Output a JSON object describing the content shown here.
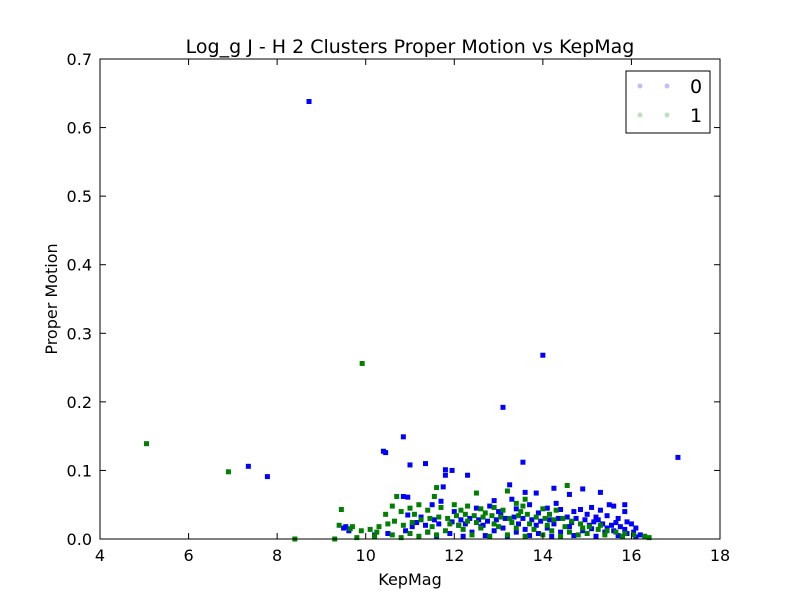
{
  "chart_data": {
    "type": "scatter",
    "title": "Log_g J - H 2 Clusters Proper Motion vs KepMag",
    "xlabel": "KepMag",
    "ylabel": "Proper Motion",
    "xlim": [
      4,
      18
    ],
    "ylim": [
      0,
      0.7
    ],
    "xticks": [
      4,
      6,
      8,
      10,
      12,
      14,
      16,
      18
    ],
    "yticks": [
      0.0,
      0.1,
      0.2,
      0.3,
      0.4,
      0.5,
      0.6,
      0.7
    ],
    "grid": false,
    "legend_position": "top-right",
    "series": [
      {
        "name": "0",
        "color": "#0000ff",
        "points": [
          [
            8.72,
            0.638
          ],
          [
            14.0,
            0.268
          ],
          [
            13.1,
            0.192
          ],
          [
            17.05,
            0.119
          ],
          [
            10.85,
            0.149
          ],
          [
            7.35,
            0.106
          ],
          [
            7.78,
            0.091
          ],
          [
            13.55,
            0.112
          ],
          [
            10.4,
            0.128
          ],
          [
            11.8,
            0.101
          ],
          [
            11.95,
            0.1
          ],
          [
            12.3,
            0.093
          ],
          [
            11.8,
            0.093
          ],
          [
            10.85,
            0.062
          ],
          [
            10.95,
            0.061
          ],
          [
            11.75,
            0.076
          ],
          [
            13.25,
            0.079
          ],
          [
            13.6,
            0.068
          ],
          [
            13.85,
            0.067
          ],
          [
            15.3,
            0.068
          ],
          [
            14.25,
            0.074
          ],
          [
            14.9,
            0.073
          ],
          [
            14.6,
            0.065
          ],
          [
            12.9,
            0.056
          ],
          [
            13.3,
            0.058
          ],
          [
            14.3,
            0.052
          ],
          [
            15.1,
            0.046
          ],
          [
            15.5,
            0.05
          ],
          [
            15.6,
            0.048
          ],
          [
            15.85,
            0.05
          ],
          [
            15.3,
            0.042
          ],
          [
            15.85,
            0.04
          ],
          [
            11.7,
            0.055
          ],
          [
            11.5,
            0.05
          ],
          [
            9.55,
            0.018
          ],
          [
            9.62,
            0.012
          ],
          [
            12.0,
            0.04
          ],
          [
            12.5,
            0.045
          ],
          [
            12.8,
            0.048
          ],
          [
            13.0,
            0.04
          ],
          [
            13.4,
            0.044
          ],
          [
            13.7,
            0.05
          ],
          [
            13.9,
            0.038
          ],
          [
            14.1,
            0.045
          ],
          [
            14.4,
            0.043
          ],
          [
            14.7,
            0.04
          ],
          [
            15.0,
            0.036
          ],
          [
            15.2,
            0.032
          ],
          [
            15.45,
            0.034
          ],
          [
            15.7,
            0.03
          ],
          [
            15.9,
            0.025
          ],
          [
            16.0,
            0.022
          ],
          [
            15.75,
            0.018
          ],
          [
            15.55,
            0.02
          ],
          [
            15.35,
            0.022
          ],
          [
            15.15,
            0.025
          ],
          [
            14.95,
            0.028
          ],
          [
            14.75,
            0.03
          ],
          [
            14.55,
            0.032
          ],
          [
            14.35,
            0.03
          ],
          [
            14.15,
            0.028
          ],
          [
            13.95,
            0.026
          ],
          [
            13.75,
            0.028
          ],
          [
            13.55,
            0.03
          ],
          [
            13.35,
            0.032
          ],
          [
            13.15,
            0.03
          ],
          [
            12.95,
            0.028
          ],
          [
            12.75,
            0.026
          ],
          [
            12.55,
            0.028
          ],
          [
            12.35,
            0.03
          ],
          [
            12.15,
            0.028
          ],
          [
            11.95,
            0.025
          ],
          [
            11.65,
            0.022
          ],
          [
            11.35,
            0.02
          ],
          [
            11.05,
            0.018
          ],
          [
            10.95,
            0.035
          ],
          [
            11.25,
            0.032
          ],
          [
            12.1,
            0.02
          ],
          [
            12.6,
            0.018
          ],
          [
            13.1,
            0.016
          ],
          [
            13.6,
            0.014
          ],
          [
            14.1,
            0.016
          ],
          [
            14.6,
            0.018
          ],
          [
            15.1,
            0.015
          ],
          [
            15.6,
            0.012
          ],
          [
            16.05,
            0.01
          ],
          [
            16.2,
            0.006
          ],
          [
            15.9,
            0.008
          ],
          [
            15.4,
            0.01
          ],
          [
            14.9,
            0.012
          ],
          [
            14.4,
            0.01
          ],
          [
            13.9,
            0.008
          ],
          [
            13.4,
            0.01
          ],
          [
            12.9,
            0.012
          ],
          [
            12.4,
            0.01
          ],
          [
            11.9,
            0.008
          ],
          [
            11.4,
            0.01
          ],
          [
            10.9,
            0.012
          ],
          [
            10.5,
            0.008
          ],
          [
            10.2,
            0.006
          ],
          [
            12.2,
            0.004
          ],
          [
            12.7,
            0.005
          ],
          [
            13.2,
            0.004
          ],
          [
            13.7,
            0.005
          ],
          [
            14.2,
            0.004
          ],
          [
            14.7,
            0.005
          ],
          [
            15.2,
            0.004
          ],
          [
            15.7,
            0.005
          ],
          [
            16.1,
            0.003
          ],
          [
            11.6,
            0.004
          ],
          [
            13.05,
            0.036
          ],
          [
            13.45,
            0.022
          ],
          [
            13.85,
            0.02
          ],
          [
            14.25,
            0.022
          ],
          [
            14.65,
            0.024
          ],
          [
            15.05,
            0.02
          ],
          [
            15.45,
            0.016
          ],
          [
            15.85,
            0.014
          ],
          [
            12.25,
            0.022
          ],
          [
            12.65,
            0.02
          ],
          [
            11.55,
            0.028
          ],
          [
            11.15,
            0.024
          ],
          [
            15.25,
            0.028
          ],
          [
            15.65,
            0.024
          ],
          [
            16.1,
            0.016
          ],
          [
            14.85,
            0.043
          ],
          [
            11.0,
            0.108
          ],
          [
            11.35,
            0.11
          ],
          [
            10.45,
            0.126
          ],
          [
            9.5,
            0.016
          ]
        ]
      },
      {
        "name": "1",
        "color": "#007f00",
        "points": [
          [
            5.05,
            0.139
          ],
          [
            6.9,
            0.098
          ],
          [
            9.92,
            0.256
          ],
          [
            14.55,
            0.078
          ],
          [
            11.6,
            0.075
          ],
          [
            11.55,
            0.062
          ],
          [
            10.7,
            0.062
          ],
          [
            12.5,
            0.067
          ],
          [
            13.2,
            0.07
          ],
          [
            9.45,
            0.043
          ],
          [
            10.45,
            0.036
          ],
          [
            10.6,
            0.048
          ],
          [
            10.8,
            0.04
          ],
          [
            11.0,
            0.045
          ],
          [
            11.2,
            0.05
          ],
          [
            11.4,
            0.042
          ],
          [
            11.7,
            0.046
          ],
          [
            12.0,
            0.05
          ],
          [
            12.3,
            0.048
          ],
          [
            12.6,
            0.044
          ],
          [
            12.9,
            0.046
          ],
          [
            13.4,
            0.052
          ],
          [
            13.6,
            0.058
          ],
          [
            14.0,
            0.044
          ],
          [
            14.3,
            0.042
          ],
          [
            9.4,
            0.02
          ],
          [
            9.65,
            0.015
          ],
          [
            9.9,
            0.012
          ],
          [
            10.1,
            0.014
          ],
          [
            10.3,
            0.018
          ],
          [
            10.5,
            0.022
          ],
          [
            10.65,
            0.026
          ],
          [
            10.85,
            0.02
          ],
          [
            11.05,
            0.024
          ],
          [
            11.25,
            0.028
          ],
          [
            11.45,
            0.03
          ],
          [
            11.65,
            0.032
          ],
          [
            11.85,
            0.03
          ],
          [
            12.05,
            0.034
          ],
          [
            12.25,
            0.036
          ],
          [
            12.45,
            0.034
          ],
          [
            12.65,
            0.032
          ],
          [
            12.85,
            0.034
          ],
          [
            13.05,
            0.032
          ],
          [
            13.25,
            0.03
          ],
          [
            13.45,
            0.034
          ],
          [
            13.65,
            0.036
          ],
          [
            13.85,
            0.032
          ],
          [
            14.05,
            0.03
          ],
          [
            14.25,
            0.028
          ],
          [
            14.45,
            0.03
          ],
          [
            14.65,
            0.026
          ],
          [
            14.85,
            0.022
          ],
          [
            15.05,
            0.018
          ],
          [
            15.25,
            0.014
          ],
          [
            15.45,
            0.012
          ],
          [
            15.65,
            0.01
          ],
          [
            15.85,
            0.008
          ],
          [
            16.05,
            0.006
          ],
          [
            16.3,
            0.004
          ],
          [
            16.4,
            0.002
          ],
          [
            8.4,
            0.0
          ],
          [
            9.3,
            0.0
          ],
          [
            9.8,
            0.002
          ],
          [
            10.2,
            0.004
          ],
          [
            10.6,
            0.006
          ],
          [
            11.0,
            0.008
          ],
          [
            11.4,
            0.01
          ],
          [
            11.8,
            0.012
          ],
          [
            12.2,
            0.014
          ],
          [
            12.6,
            0.016
          ],
          [
            13.0,
            0.018
          ],
          [
            13.4,
            0.016
          ],
          [
            13.8,
            0.014
          ],
          [
            14.2,
            0.012
          ],
          [
            14.6,
            0.01
          ],
          [
            15.0,
            0.008
          ],
          [
            15.4,
            0.006
          ],
          [
            15.8,
            0.004
          ],
          [
            12.4,
            0.006
          ],
          [
            12.8,
            0.004
          ],
          [
            13.2,
            0.006
          ],
          [
            13.6,
            0.004
          ],
          [
            14.0,
            0.006
          ],
          [
            14.4,
            0.004
          ],
          [
            14.8,
            0.006
          ],
          [
            11.6,
            0.006
          ],
          [
            11.2,
            0.004
          ],
          [
            10.8,
            0.002
          ],
          [
            12.1,
            0.02
          ],
          [
            12.5,
            0.024
          ],
          [
            12.9,
            0.022
          ],
          [
            13.3,
            0.024
          ],
          [
            13.7,
            0.022
          ],
          [
            14.1,
            0.02
          ],
          [
            14.5,
            0.018
          ],
          [
            14.9,
            0.016
          ],
          [
            15.3,
            0.02
          ],
          [
            11.9,
            0.022
          ],
          [
            11.5,
            0.018
          ],
          [
            13.5,
            0.04
          ],
          [
            13.1,
            0.042
          ],
          [
            12.7,
            0.038
          ],
          [
            12.3,
            0.026
          ],
          [
            11.1,
            0.036
          ],
          [
            9.7,
            0.018
          ],
          [
            10.25,
            0.01
          ],
          [
            13.55,
            0.048
          ],
          [
            12.15,
            0.042
          ],
          [
            14.15,
            0.036
          ]
        ]
      }
    ]
  }
}
